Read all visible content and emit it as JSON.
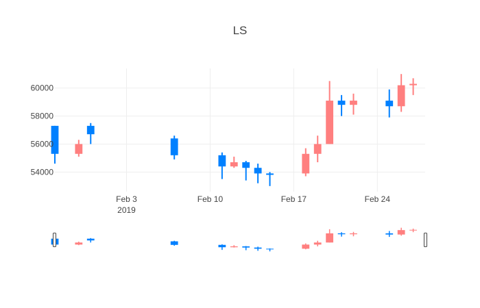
{
  "chart_data": {
    "type": "candlestick",
    "title": "LS",
    "xlabel": "",
    "ylabel": "",
    "x_range": [
      "2019-01-28",
      "2019-02-28"
    ],
    "ylim": [
      52600,
      61400
    ],
    "y_ticks": [
      54000,
      56000,
      58000,
      60000
    ],
    "y_tick_labels": [
      "54000",
      "56000",
      "58000",
      "60000"
    ],
    "x_ticks": [
      {
        "date": "2019-02-03",
        "label": "Feb 3",
        "sublabel": "2019"
      },
      {
        "date": "2019-02-10",
        "label": "Feb 10",
        "sublabel": ""
      },
      {
        "date": "2019-02-17",
        "label": "Feb 17",
        "sublabel": ""
      },
      {
        "date": "2019-02-24",
        "label": "Feb 24",
        "sublabel": ""
      }
    ],
    "grid": true,
    "rangeslider": true,
    "colors": {
      "increasing": "#ff7f7f",
      "decreasing": "#0080ff",
      "grid": "#eeeeee",
      "text": "#444444"
    },
    "candles": [
      {
        "date": "2019-01-28",
        "open": 57300,
        "high": 57300,
        "low": 54600,
        "close": 55300
      },
      {
        "date": "2019-01-30",
        "open": 55300,
        "high": 56300,
        "low": 55100,
        "close": 56000
      },
      {
        "date": "2019-01-31",
        "open": 57300,
        "high": 57500,
        "low": 56000,
        "close": 56700
      },
      {
        "date": "2019-02-07",
        "open": 56400,
        "high": 56600,
        "low": 54900,
        "close": 55200
      },
      {
        "date": "2019-02-11",
        "open": 55200,
        "high": 55400,
        "low": 53500,
        "close": 54400
      },
      {
        "date": "2019-02-12",
        "open": 54400,
        "high": 55100,
        "low": 54300,
        "close": 54700
      },
      {
        "date": "2019-02-13",
        "open": 54700,
        "high": 54800,
        "low": 53400,
        "close": 54300
      },
      {
        "date": "2019-02-14",
        "open": 54300,
        "high": 54600,
        "low": 53200,
        "close": 53900
      },
      {
        "date": "2019-02-15",
        "open": 53900,
        "high": 54000,
        "low": 53000,
        "close": 53800
      },
      {
        "date": "2019-02-18",
        "open": 53900,
        "high": 55700,
        "low": 53700,
        "close": 55300
      },
      {
        "date": "2019-02-19",
        "open": 55300,
        "high": 56600,
        "low": 54700,
        "close": 56000
      },
      {
        "date": "2019-02-20",
        "open": 56000,
        "high": 60500,
        "low": 56000,
        "close": 59100
      },
      {
        "date": "2019-02-21",
        "open": 59100,
        "high": 59500,
        "low": 58000,
        "close": 58800
      },
      {
        "date": "2019-02-22",
        "open": 58800,
        "high": 59600,
        "low": 58100,
        "close": 59100
      },
      {
        "date": "2019-02-25",
        "open": 59100,
        "high": 59900,
        "low": 57900,
        "close": 58700
      },
      {
        "date": "2019-02-26",
        "open": 58700,
        "high": 61000,
        "low": 58300,
        "close": 60200
      },
      {
        "date": "2019-02-27",
        "open": 60200,
        "high": 60700,
        "low": 59500,
        "close": 60300
      }
    ]
  }
}
